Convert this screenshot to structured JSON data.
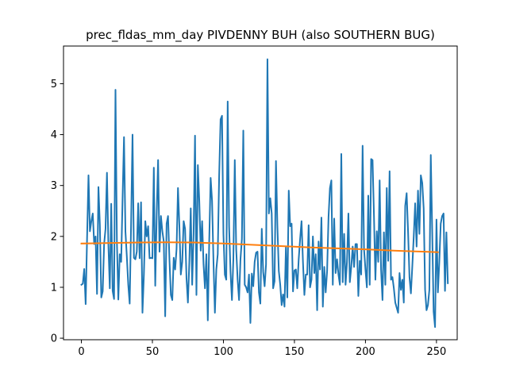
{
  "chart_data": {
    "type": "line",
    "title": "prec_fldas_mm_day PIVDENNY BUH (also SOUTHERN BUG)",
    "xlabel": "",
    "ylabel": "",
    "xlim": [
      -12.6,
      264.6
    ],
    "ylim": [
      -0.03,
      5.74
    ],
    "xticks": [
      0,
      50,
      100,
      150,
      200,
      250
    ],
    "yticks": [
      0,
      1,
      2,
      3,
      4,
      5
    ],
    "grid": false,
    "legend": "none",
    "series": [
      {
        "color": "#1f77b4",
        "x_start": 0,
        "values": [
          1.05,
          1.07,
          1.36,
          0.67,
          1.97,
          3.2,
          2.1,
          2.3,
          2.45,
          1.85,
          2.0,
          0.87,
          2.97,
          2.23,
          0.8,
          0.92,
          1.85,
          2.15,
          3.25,
          1.85,
          0.98,
          2.64,
          0.93,
          0.77,
          4.88,
          1.9,
          0.76,
          1.65,
          1.5,
          2.75,
          3.95,
          2.1,
          1.6,
          1.05,
          0.68,
          2.25,
          4.0,
          1.58,
          1.55,
          1.7,
          2.65,
          1.57,
          2.67,
          0.5,
          1.25,
          2.3,
          2.0,
          2.2,
          1.57,
          1.58,
          1.57,
          3.35,
          1.03,
          2.42,
          3.5,
          1.7,
          2.4,
          2.1,
          1.9,
          0.43,
          2.25,
          2.4,
          1.55,
          0.85,
          0.75,
          1.58,
          1.35,
          1.75,
          2.95,
          2.2,
          1.25,
          1.5,
          2.3,
          2.15,
          1.18,
          0.7,
          1.5,
          2.55,
          1.05,
          2.05,
          3.98,
          0.85,
          3.4,
          2.7,
          1.72,
          2.3,
          1.45,
          0.98,
          1.65,
          0.35,
          1.9,
          3.15,
          2.7,
          1.5,
          0.5,
          1.35,
          1.65,
          3.2,
          4.3,
          4.37,
          2.05,
          1.25,
          1.15,
          4.65,
          2.2,
          1.3,
          0.75,
          1.55,
          3.5,
          1.75,
          1.15,
          0.75,
          1.55,
          1.95,
          4.08,
          1.05,
          1.0,
          0.9,
          1.25,
          0.3,
          1.27,
          1.02,
          1.5,
          1.68,
          1.7,
          0.9,
          0.68,
          2.15,
          1.3,
          1.02,
          1.45,
          5.48,
          2.45,
          2.75,
          2.45,
          0.98,
          1.12,
          3.48,
          2.2,
          1.32,
          1.05,
          0.65,
          0.86,
          0.62,
          1.8,
          0.8,
          2.9,
          2.2,
          2.25,
          0.92,
          1.33,
          1.35,
          0.98,
          1.55,
          1.95,
          2.3,
          1.5,
          0.85,
          1.25,
          1.25,
          2.22,
          1.0,
          1.15,
          2.0,
          1.28,
          1.65,
          0.55,
          1.9,
          1.35,
          2.37,
          0.62,
          1.4,
          0.9,
          1.32,
          2.38,
          2.95,
          3.1,
          1.05,
          2.35,
          1.28,
          1.55,
          1.25,
          1.05,
          3.62,
          1.1,
          2.05,
          1.05,
          1.5,
          2.45,
          1.1,
          1.4,
          1.8,
          1.4,
          1.85,
          1.85,
          0.83,
          1.52,
          1.25,
          3.78,
          1.75,
          1.35,
          1.0,
          2.8,
          1.05,
          3.52,
          3.5,
          2.4,
          1.15,
          2.1,
          1.5,
          3.1,
          1.35,
          0.75,
          2.08,
          1.05,
          2.95,
          1.52,
          3.28,
          1.15,
          1.2,
          0.98,
          0.7,
          0.6,
          0.5,
          1.28,
          0.95,
          1.15,
          0.7,
          2.6,
          2.85,
          2.1,
          1.2,
          0.88,
          1.42,
          2.0,
          2.65,
          1.8,
          2.9,
          2.05,
          3.2,
          3.05,
          2.55,
          0.95,
          0.55,
          0.65,
          0.95,
          3.6,
          2.1,
          0.52,
          0.22,
          2.33,
          0.9,
          1.5,
          2.25,
          2.4,
          2.45,
          0.93,
          2.08,
          1.08
        ]
      },
      {
        "color": "#ff7f0e",
        "x": [
          0,
          20,
          40,
          60,
          80,
          100,
          120,
          140,
          160,
          180,
          200,
          220,
          240,
          251
        ],
        "values": [
          1.86,
          1.87,
          1.88,
          1.885,
          1.88,
          1.86,
          1.835,
          1.81,
          1.785,
          1.765,
          1.745,
          1.72,
          1.7,
          1.69
        ]
      }
    ]
  }
}
